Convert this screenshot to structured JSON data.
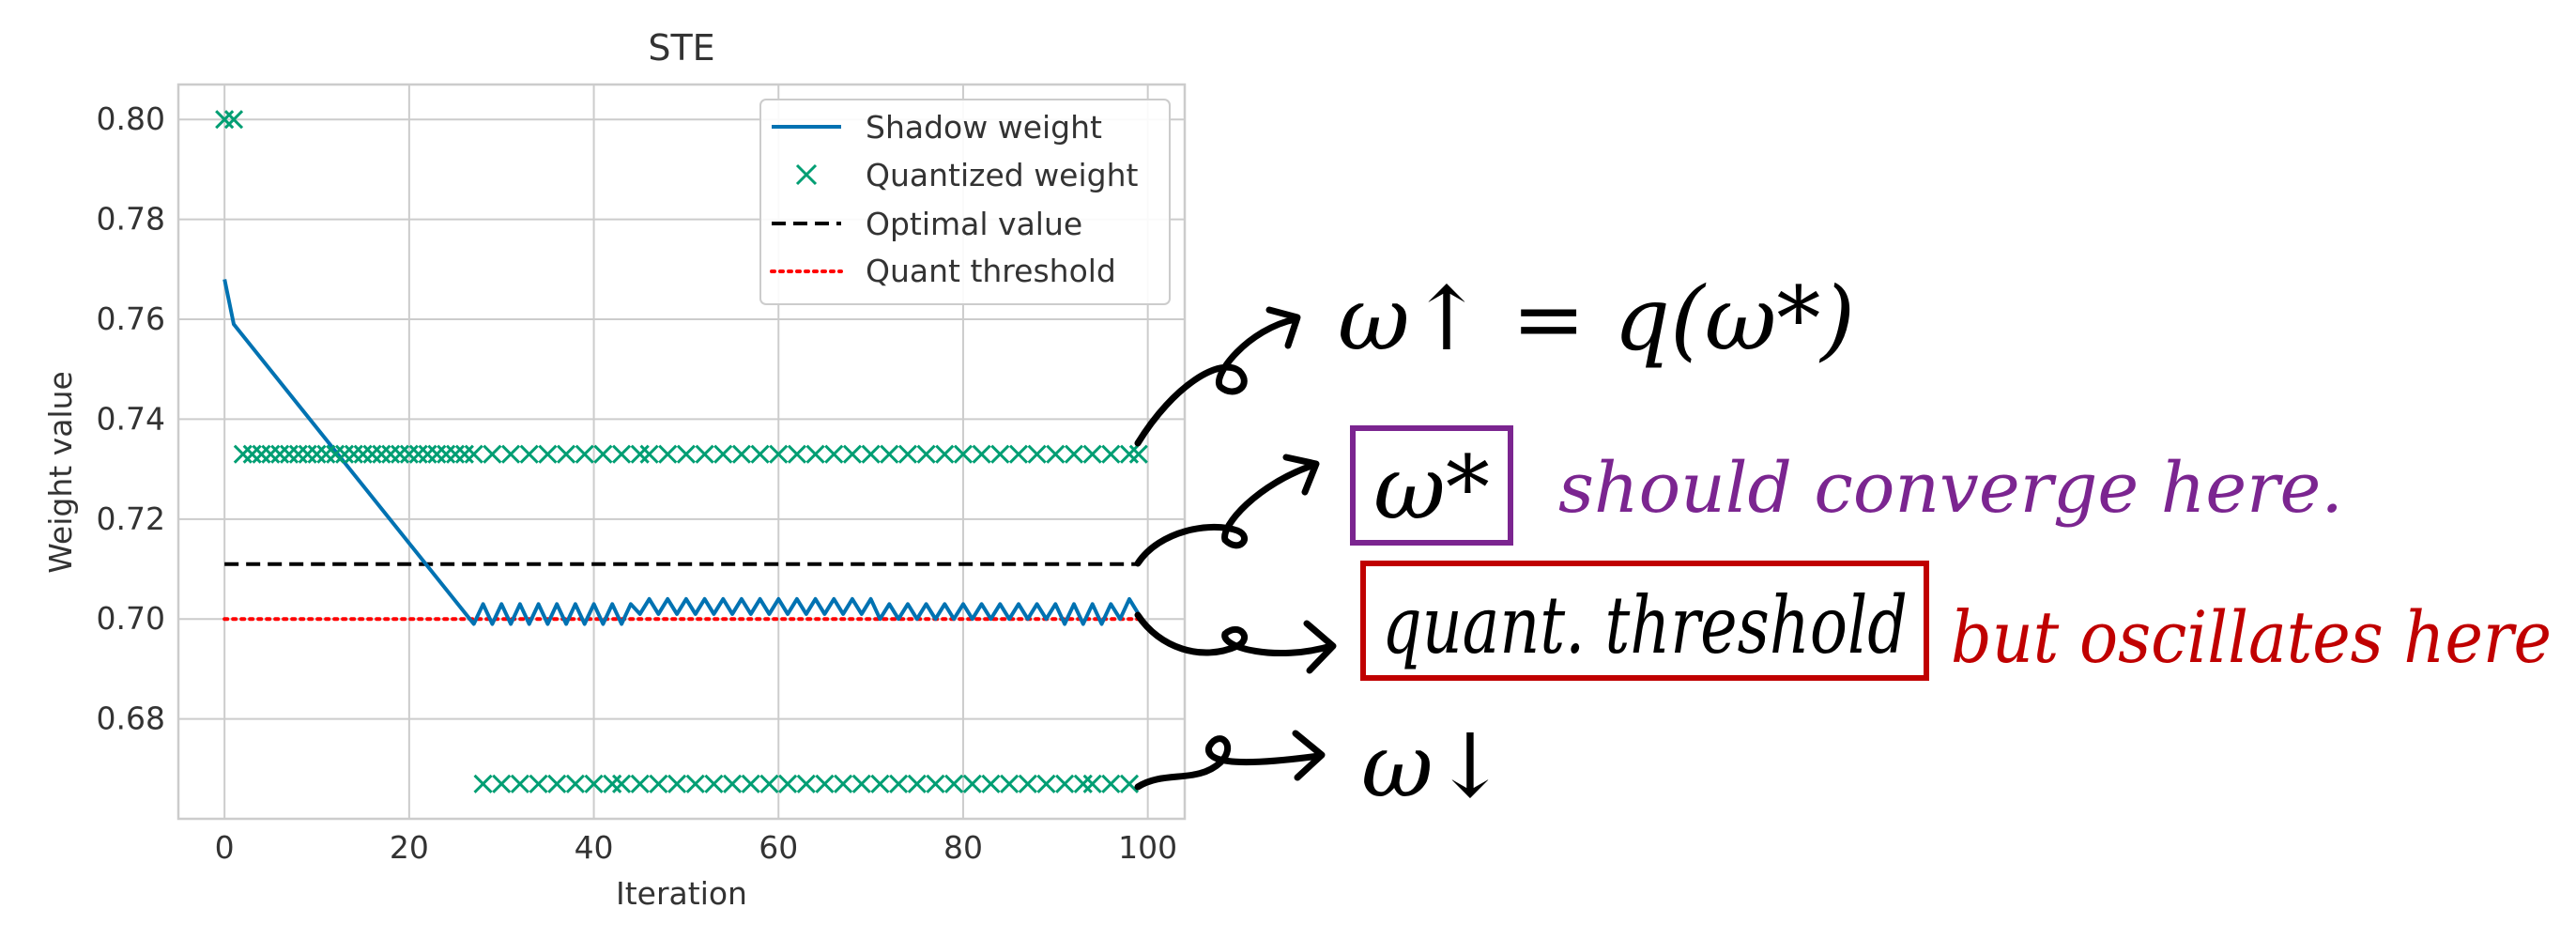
{
  "chart_data": {
    "type": "line",
    "title": "STE",
    "xlabel": "Iteration",
    "ylabel": "Weight value",
    "xlim": [
      -5,
      104
    ],
    "ylim": [
      0.66,
      0.807
    ],
    "xticks": [
      0,
      20,
      40,
      60,
      80,
      100
    ],
    "yticks": [
      0.68,
      0.7,
      0.72,
      0.74,
      0.76,
      0.78,
      0.8
    ],
    "xtick_labels": [
      "0",
      "20",
      "40",
      "60",
      "80",
      "100"
    ],
    "ytick_labels": [
      "0.68",
      "0.70",
      "0.72",
      "0.74",
      "0.76",
      "0.78",
      "0.80"
    ],
    "grid": true,
    "legend_position": "top-right",
    "series": [
      {
        "name": "Shadow weight",
        "kind": "line",
        "color": "#0072b2",
        "x": [
          0,
          1,
          27,
          28,
          29,
          30,
          31,
          32,
          33,
          34,
          35,
          36,
          37,
          38,
          39,
          40,
          41,
          42,
          43,
          44,
          45,
          46,
          47,
          48,
          49,
          50,
          51,
          52,
          53,
          54,
          55,
          56,
          57,
          58,
          59,
          60,
          61,
          62,
          63,
          64,
          65,
          66,
          67,
          68,
          69,
          70,
          71,
          72,
          73,
          74,
          75,
          76,
          77,
          78,
          79,
          80,
          81,
          82,
          83,
          84,
          85,
          86,
          87,
          88,
          89,
          90,
          91,
          92,
          93,
          94,
          95,
          96,
          97,
          98,
          99
        ],
        "y": [
          0.768,
          0.759,
          0.699,
          0.703,
          0.699,
          0.703,
          0.699,
          0.703,
          0.699,
          0.703,
          0.699,
          0.703,
          0.699,
          0.703,
          0.699,
          0.703,
          0.699,
          0.703,
          0.699,
          0.703,
          0.701,
          0.704,
          0.701,
          0.704,
          0.701,
          0.704,
          0.701,
          0.704,
          0.701,
          0.704,
          0.701,
          0.704,
          0.701,
          0.704,
          0.701,
          0.704,
          0.701,
          0.704,
          0.701,
          0.704,
          0.701,
          0.704,
          0.701,
          0.704,
          0.701,
          0.704,
          0.7,
          0.703,
          0.7,
          0.703,
          0.7,
          0.703,
          0.7,
          0.703,
          0.7,
          0.703,
          0.7,
          0.703,
          0.7,
          0.703,
          0.7,
          0.703,
          0.7,
          0.703,
          0.7,
          0.703,
          0.699,
          0.703,
          0.699,
          0.703,
          0.699,
          0.703,
          0.7,
          0.704,
          0.701
        ]
      },
      {
        "name": "Quantized weight",
        "kind": "scatter",
        "marker": "x",
        "color": "#009e73",
        "points": [
          [
            0,
            0.8
          ],
          [
            1,
            0.8
          ],
          [
            2,
            0.733
          ],
          [
            3,
            0.733
          ],
          [
            4,
            0.733
          ],
          [
            5,
            0.733
          ],
          [
            6,
            0.733
          ],
          [
            7,
            0.733
          ],
          [
            8,
            0.733
          ],
          [
            9,
            0.733
          ],
          [
            10,
            0.733
          ],
          [
            11,
            0.733
          ],
          [
            12,
            0.733
          ],
          [
            13,
            0.733
          ],
          [
            14,
            0.733
          ],
          [
            15,
            0.733
          ],
          [
            16,
            0.733
          ],
          [
            17,
            0.733
          ],
          [
            18,
            0.733
          ],
          [
            19,
            0.733
          ],
          [
            20,
            0.733
          ],
          [
            21,
            0.733
          ],
          [
            22,
            0.733
          ],
          [
            23,
            0.733
          ],
          [
            24,
            0.733
          ],
          [
            25,
            0.733
          ],
          [
            26,
            0.733
          ],
          [
            27,
            0.733
          ],
          [
            29,
            0.733
          ],
          [
            31,
            0.733
          ],
          [
            33,
            0.733
          ],
          [
            35,
            0.733
          ],
          [
            37,
            0.733
          ],
          [
            39,
            0.733
          ],
          [
            41,
            0.733
          ],
          [
            43,
            0.733
          ],
          [
            45,
            0.733
          ],
          [
            46,
            0.733
          ],
          [
            48,
            0.733
          ],
          [
            50,
            0.733
          ],
          [
            52,
            0.733
          ],
          [
            54,
            0.733
          ],
          [
            56,
            0.733
          ],
          [
            58,
            0.733
          ],
          [
            60,
            0.733
          ],
          [
            62,
            0.733
          ],
          [
            64,
            0.733
          ],
          [
            66,
            0.733
          ],
          [
            68,
            0.733
          ],
          [
            70,
            0.733
          ],
          [
            72,
            0.733
          ],
          [
            74,
            0.733
          ],
          [
            76,
            0.733
          ],
          [
            78,
            0.733
          ],
          [
            80,
            0.733
          ],
          [
            82,
            0.733
          ],
          [
            84,
            0.733
          ],
          [
            86,
            0.733
          ],
          [
            88,
            0.733
          ],
          [
            90,
            0.733
          ],
          [
            92,
            0.733
          ],
          [
            94,
            0.733
          ],
          [
            96,
            0.733
          ],
          [
            98,
            0.733
          ],
          [
            99,
            0.733
          ],
          [
            28,
            0.667
          ],
          [
            30,
            0.667
          ],
          [
            32,
            0.667
          ],
          [
            34,
            0.667
          ],
          [
            36,
            0.667
          ],
          [
            38,
            0.667
          ],
          [
            40,
            0.667
          ],
          [
            42,
            0.667
          ],
          [
            43,
            0.667
          ],
          [
            45,
            0.667
          ],
          [
            47,
            0.667
          ],
          [
            49,
            0.667
          ],
          [
            51,
            0.667
          ],
          [
            53,
            0.667
          ],
          [
            55,
            0.667
          ],
          [
            57,
            0.667
          ],
          [
            59,
            0.667
          ],
          [
            61,
            0.667
          ],
          [
            63,
            0.667
          ],
          [
            65,
            0.667
          ],
          [
            67,
            0.667
          ],
          [
            69,
            0.667
          ],
          [
            71,
            0.667
          ],
          [
            73,
            0.667
          ],
          [
            75,
            0.667
          ],
          [
            77,
            0.667
          ],
          [
            79,
            0.667
          ],
          [
            81,
            0.667
          ],
          [
            83,
            0.667
          ],
          [
            85,
            0.667
          ],
          [
            87,
            0.667
          ],
          [
            89,
            0.667
          ],
          [
            91,
            0.667
          ],
          [
            93,
            0.667
          ],
          [
            94,
            0.667
          ],
          [
            96,
            0.667
          ],
          [
            98,
            0.667
          ]
        ]
      },
      {
        "name": "Optimal value",
        "kind": "hline",
        "color": "#000000",
        "style": "dashed",
        "y": 0.711,
        "x_range": [
          0,
          99
        ]
      },
      {
        "name": "Quant threshold",
        "kind": "hline",
        "color": "#ff0000",
        "style": "dotted",
        "y": 0.7,
        "x_range": [
          0,
          99
        ]
      }
    ]
  },
  "annotations": {
    "w_up": "ω↑ = q(ω*)",
    "w_star": "ω*",
    "w_star_note": "should converge here.",
    "threshold_box": "quant. threshold",
    "threshold_note": "but oscillates here",
    "w_down": "ω↓",
    "colors": {
      "purple": "#7b2590",
      "red": "#c00000",
      "ink": "#000000"
    }
  }
}
